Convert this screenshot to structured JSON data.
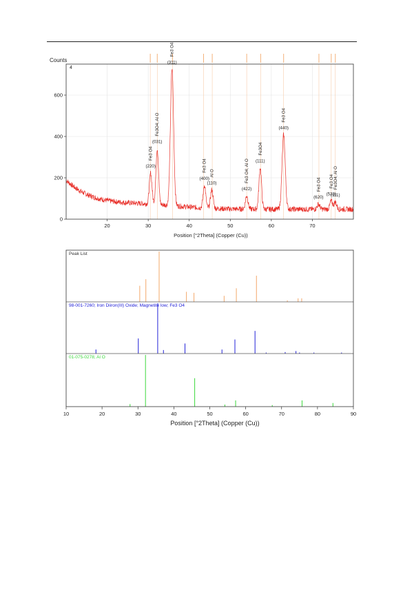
{
  "chart_data": [
    {
      "type": "line",
      "ylabel": "Counts",
      "xlabel": "Position [°2Theta] (Copper (Cu))",
      "panel_tag": "4",
      "xlim": [
        10,
        80
      ],
      "ylim": [
        0,
        750
      ],
      "x_ticks": [
        20,
        30,
        40,
        50,
        60,
        70
      ],
      "y_ticks": [
        0,
        200,
        400,
        600
      ],
      "colors": {
        "line": "#e8302a",
        "stick": "#f3a86a",
        "axes": "#333333"
      },
      "reference_sticks": [
        30.5,
        32.2,
        35.9,
        43.5,
        45.6,
        54.0,
        57.4,
        63.0,
        71.6,
        74.6,
        75.6
      ],
      "peaks": [
        {
          "x": 30.6,
          "height": 150,
          "phase": "Fe3 O4",
          "hkl": "(220)"
        },
        {
          "x": 32.2,
          "height": 270,
          "phase": "Fe3O4; Al O",
          "hkl": "(031)"
        },
        {
          "x": 35.8,
          "height": 660,
          "phase": "Fe3 O4",
          "hkl": "(311)"
        },
        {
          "x": 43.7,
          "height": 110,
          "phase": "Fe3 O4",
          "hkl": "(400)"
        },
        {
          "x": 45.5,
          "height": 90,
          "phase": "Al O",
          "hkl": "(110)"
        },
        {
          "x": 54.0,
          "height": 65,
          "phase": "Fe3 O4; Al O",
          "hkl": "(422)"
        },
        {
          "x": 57.3,
          "height": 200,
          "phase": "Fe3O4",
          "hkl": "(111)"
        },
        {
          "x": 63.0,
          "height": 360,
          "phase": "Fe3 O4",
          "hkl": "(440)"
        },
        {
          "x": 71.5,
          "height": 25,
          "phase": "Fe3 O4",
          "hkl": "(620)"
        },
        {
          "x": 74.6,
          "height": 40,
          "phase": "Fe3 O4",
          "hkl": "(533)"
        },
        {
          "x": 75.6,
          "height": 35,
          "phase": "Fe3O4; Al O",
          "hkl": "(111)"
        }
      ]
    },
    {
      "type": "bar",
      "xlabel": "Position [°2Theta] (Copper (Cu))",
      "xlim": [
        10,
        90
      ],
      "x_ticks": [
        10,
        20,
        30,
        40,
        50,
        60,
        70,
        80,
        90
      ],
      "panels": [
        {
          "name": "Peak List",
          "color": "#f3a86a",
          "sticks": [
            {
              "x": 30.5,
              "value": 32
            },
            {
              "x": 32.2,
              "value": 45
            },
            {
              "x": 35.9,
              "value": 100
            },
            {
              "x": 43.5,
              "value": 20
            },
            {
              "x": 45.6,
              "value": 18
            },
            {
              "x": 54.0,
              "value": 12
            },
            {
              "x": 57.4,
              "value": 27
            },
            {
              "x": 63.0,
              "value": 52
            },
            {
              "x": 71.6,
              "value": 3
            },
            {
              "x": 74.6,
              "value": 7
            },
            {
              "x": 75.6,
              "value": 7
            }
          ]
        },
        {
          "name": "98-001-7260; Iron Diiron(III) Oxide; Magnetite low; Fe3 O4",
          "color": "#2020d8",
          "sticks": [
            {
              "x": 18.3,
              "value": 8
            },
            {
              "x": 30.1,
              "value": 30
            },
            {
              "x": 35.5,
              "value": 100
            },
            {
              "x": 37.1,
              "value": 7
            },
            {
              "x": 43.1,
              "value": 20
            },
            {
              "x": 53.4,
              "value": 8
            },
            {
              "x": 57.0,
              "value": 28
            },
            {
              "x": 62.6,
              "value": 45
            },
            {
              "x": 65.7,
              "value": 2
            },
            {
              "x": 71.0,
              "value": 3
            },
            {
              "x": 74.0,
              "value": 5
            },
            {
              "x": 75.0,
              "value": 2
            },
            {
              "x": 79.0,
              "value": 2
            },
            {
              "x": 86.7,
              "value": 2
            }
          ]
        },
        {
          "name": "01-075-0278; Al O",
          "color": "#3ad83a",
          "sticks": [
            {
              "x": 27.8,
              "value": 5
            },
            {
              "x": 32.1,
              "value": 100
            },
            {
              "x": 45.8,
              "value": 55
            },
            {
              "x": 54.2,
              "value": 4
            },
            {
              "x": 57.2,
              "value": 12
            },
            {
              "x": 67.4,
              "value": 3
            },
            {
              "x": 75.7,
              "value": 12
            },
            {
              "x": 84.3,
              "value": 7
            }
          ]
        }
      ]
    }
  ]
}
